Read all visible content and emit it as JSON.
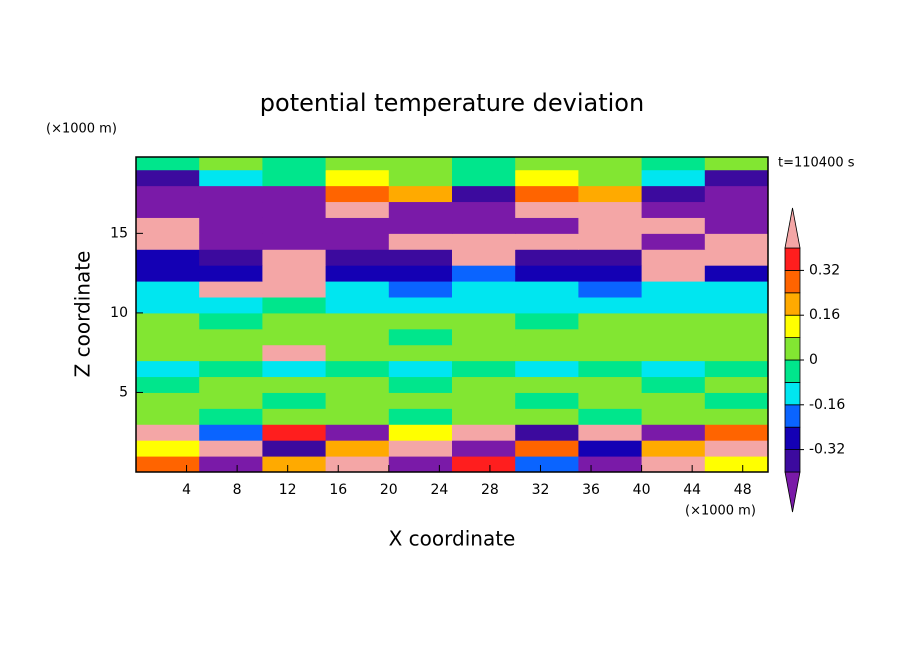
{
  "chart_data": {
    "type": "contour",
    "title": "potential temperature deviation",
    "x_label": "X coordinate",
    "y_label": "Z coordinate",
    "x_unit": "(×1000 m)",
    "y_unit": "(×1000 m)",
    "time_label": "t=110400 s",
    "xlim": [
      0,
      50
    ],
    "ylim": [
      0,
      19.8
    ],
    "xticks": [
      4,
      8,
      12,
      16,
      20,
      24,
      28,
      32,
      36,
      40,
      44,
      48
    ],
    "yticks": [
      5,
      10,
      15
    ],
    "levels": [
      -0.4,
      -0.32,
      -0.24,
      -0.16,
      -0.08,
      0,
      0.08,
      0.16,
      0.24,
      0.32,
      0.4
    ],
    "level_colors": [
      "#7a1aa8",
      "#3c0a9e",
      "#1400b4",
      "#0a64ff",
      "#00e6f0",
      "#00e68c",
      "#82e632",
      "#ffff00",
      "#ffaa00",
      "#ff6400",
      "#ff1e1e",
      "#f4a6a6"
    ],
    "colorbar_ticks": [
      0.32,
      0.16,
      0,
      -0.16,
      -0.32
    ],
    "x": [
      2.5,
      7.5,
      12.5,
      17.5,
      22.5,
      27.5,
      32.5,
      37.5,
      42.5,
      47.5
    ],
    "z": [
      0.5,
      1.5,
      2.5,
      3.5,
      4.5,
      5.5,
      6.5,
      7.5,
      8.5,
      9.5,
      10.5,
      11.5,
      12.5,
      13.5,
      14.5,
      15.5,
      16.5,
      17.5,
      18.5,
      19.5
    ],
    "values": [
      [
        0.3,
        -0.45,
        0.2,
        0.45,
        -0.45,
        0.35,
        -0.2,
        -0.45,
        0.45,
        0.1
      ],
      [
        0.1,
        0.4,
        -0.35,
        0.2,
        0.45,
        -0.45,
        0.3,
        -0.3,
        0.2,
        0.45
      ],
      [
        0.45,
        -0.2,
        0.35,
        -0.45,
        0.1,
        0.45,
        -0.4,
        0.45,
        -0.45,
        0.3
      ],
      [
        0.04,
        -0.04,
        0.04,
        0.04,
        -0.04,
        0.04,
        0.04,
        -0.04,
        0.04,
        0.04
      ],
      [
        0.04,
        0.04,
        -0.04,
        0.04,
        0.04,
        0.04,
        -0.04,
        0.04,
        0.04,
        -0.04
      ],
      [
        -0.04,
        0.04,
        0.04,
        0.04,
        -0.04,
        0.04,
        0.04,
        0.04,
        -0.04,
        0.04
      ],
      [
        -0.12,
        -0.04,
        -0.12,
        -0.04,
        -0.12,
        -0.04,
        -0.12,
        -0.04,
        -0.12,
        -0.04
      ],
      [
        0.04,
        0.04,
        0.45,
        0.04,
        0.04,
        0.04,
        0.04,
        0.04,
        0.04,
        0.04
      ],
      [
        0.04,
        0.04,
        0.04,
        0.04,
        -0.04,
        0.04,
        0.04,
        0.04,
        0.04,
        0.04
      ],
      [
        0.04,
        -0.04,
        0.04,
        0.04,
        0.04,
        0.04,
        -0.04,
        0.04,
        0.04,
        0.04
      ],
      [
        -0.12,
        -0.12,
        -0.04,
        -0.12,
        -0.12,
        -0.12,
        -0.12,
        -0.12,
        -0.12,
        -0.12
      ],
      [
        -0.12,
        0.45,
        0.45,
        -0.12,
        -0.2,
        -0.12,
        -0.12,
        -0.2,
        -0.12,
        -0.12
      ],
      [
        -0.28,
        -0.28,
        0.45,
        -0.28,
        -0.28,
        -0.2,
        -0.28,
        -0.28,
        0.45,
        -0.28
      ],
      [
        -0.28,
        -0.36,
        0.45,
        -0.36,
        -0.36,
        0.45,
        -0.36,
        -0.36,
        0.45,
        0.45
      ],
      [
        0.45,
        -0.45,
        -0.45,
        -0.45,
        0.45,
        0.45,
        0.45,
        0.45,
        -0.45,
        0.45
      ],
      [
        0.45,
        -0.45,
        -0.45,
        -0.45,
        -0.45,
        -0.45,
        -0.45,
        0.45,
        0.45,
        -0.45
      ],
      [
        -0.45,
        -0.45,
        -0.45,
        0.45,
        -0.45,
        -0.45,
        0.45,
        0.45,
        -0.45,
        -0.45
      ],
      [
        -0.45,
        -0.45,
        -0.45,
        0.3,
        0.2,
        -0.36,
        0.3,
        0.2,
        -0.36,
        -0.45
      ],
      [
        -0.36,
        -0.12,
        -0.04,
        0.12,
        0.04,
        -0.04,
        0.12,
        0.04,
        -0.12,
        -0.36
      ],
      [
        -0.04,
        0.04,
        -0.04,
        0.04,
        0.04,
        -0.04,
        0.04,
        0.04,
        -0.04,
        0.04
      ]
    ]
  }
}
